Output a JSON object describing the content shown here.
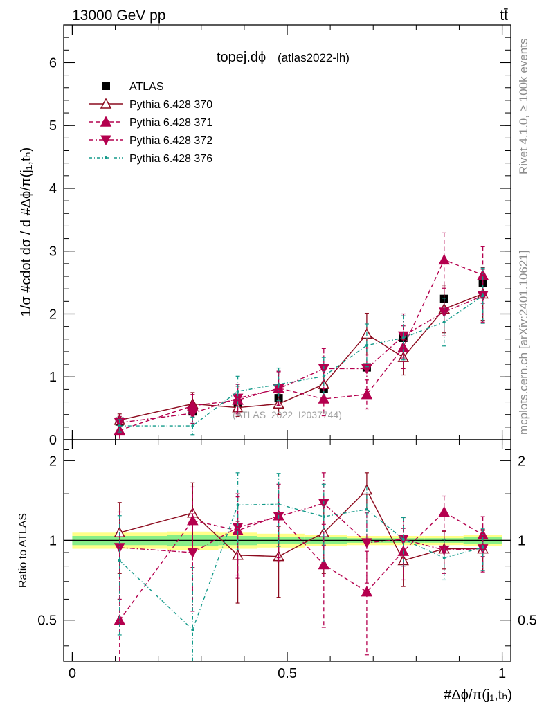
{
  "header": {
    "left": "13000 GeV pp",
    "right": "tt̄",
    "side_top": "Rivet 4.1.0, ≥ 100k events",
    "side_bottom": "mcplots.cern.ch [arXiv:2401.10621]"
  },
  "chart_data": {
    "type": "scatter",
    "title": "topej.dϕ",
    "subtitle": "(atlas2022-lh)",
    "watermark": "(ATLAS_2022_I2037744)",
    "ylabel": "1/σ #cdot dσ / d #Δϕ/π(j₁,tₕ)",
    "xlabel": "#Δϕ/π(j₁,tₕ)",
    "ratio_ylabel": "Ratio to ATLAS",
    "xlim": [
      -0.02,
      1.02
    ],
    "ylim": [
      0,
      6.6
    ],
    "ratio_ylim": [
      0.35,
      2.4
    ],
    "x_ticks": [
      0,
      0.5,
      1
    ],
    "x_tick_labels": [
      "0",
      "0.5",
      "1"
    ],
    "y_ticks": [
      0,
      1,
      2,
      3,
      4,
      5,
      6
    ],
    "y_tick_labels": [
      "0",
      "1",
      "2",
      "3",
      "4",
      "5",
      "6"
    ],
    "ratio_ticks": [
      0.5,
      1,
      2
    ],
    "ratio_tick_labels": [
      "0.5",
      "1",
      "2"
    ],
    "x": [
      0.11,
      0.28,
      0.385,
      0.48,
      0.585,
      0.685,
      0.77,
      0.865,
      0.955
    ],
    "band_edges": [
      0,
      0.22,
      0.34,
      0.43,
      0.54,
      0.64,
      0.73,
      0.82,
      0.91,
      1.0
    ],
    "band_yellow": [
      0.07,
      0.08,
      0.07,
      0.06,
      0.05,
      0.04,
      0.04,
      0.04,
      0.05
    ],
    "band_green": [
      0.04,
      0.05,
      0.04,
      0.03,
      0.03,
      0.02,
      0.02,
      0.02,
      0.03
    ],
    "series": [
      {
        "name": "ATLAS",
        "color": "#000000",
        "dash": "",
        "marker": "square",
        "values": [
          0.29,
          0.45,
          0.58,
          0.66,
          0.81,
          1.15,
          1.62,
          2.24,
          2.49
        ],
        "errors": [
          0.02,
          0.03,
          0.03,
          0.03,
          0.03,
          0.04,
          0.05,
          0.08,
          0.09
        ],
        "ratio": [
          1,
          1,
          1,
          1,
          1,
          1,
          1,
          1,
          1
        ],
        "ratio_err": [
          0,
          0,
          0,
          0,
          0,
          0,
          0,
          0,
          0
        ]
      },
      {
        "name": "Pythia 6.428 370",
        "color": "#8c0a1e",
        "dash": "",
        "marker": "triangle-open",
        "values": [
          0.31,
          0.57,
          0.51,
          0.57,
          0.88,
          1.68,
          1.31,
          2.08,
          2.32
        ],
        "errors": [
          0.1,
          0.18,
          0.14,
          0.17,
          0.26,
          0.33,
          0.28,
          0.38,
          0.42
        ],
        "ratio": [
          1.07,
          1.27,
          0.88,
          0.87,
          1.07,
          1.55,
          0.84,
          0.93,
          0.93
        ],
        "ratio_err": [
          0.32,
          0.38,
          0.3,
          0.26,
          0.32,
          0.25,
          0.17,
          0.15,
          0.16
        ]
      },
      {
        "name": "Pythia 6.428 371",
        "color": "#b4004e",
        "dash": "6,4",
        "marker": "triangle-up",
        "values": [
          0.15,
          0.54,
          0.63,
          0.82,
          0.65,
          0.72,
          1.47,
          2.86,
          2.62
        ],
        "errors": [
          0.15,
          0.18,
          0.22,
          0.27,
          0.27,
          0.23,
          0.34,
          0.43,
          0.45
        ],
        "ratio": [
          0.5,
          1.19,
          1.09,
          1.24,
          0.81,
          0.64,
          0.91,
          1.28,
          1.05
        ],
        "ratio_err": [
          0.45,
          0.4,
          0.37,
          0.38,
          0.34,
          0.27,
          0.2,
          0.19,
          0.18
        ]
      },
      {
        "name": "Pythia 6.428 372",
        "color": "#b4004e",
        "dash": "7,3,2,3",
        "marker": "triangle-down",
        "values": [
          0.27,
          0.42,
          0.66,
          0.81,
          1.13,
          1.13,
          1.65,
          2.03,
          2.29
        ],
        "errors": [
          0.1,
          0.16,
          0.22,
          0.27,
          0.32,
          0.33,
          0.35,
          0.38,
          0.42
        ],
        "ratio": [
          0.94,
          0.9,
          1.12,
          1.23,
          1.38,
          0.98,
          1.01,
          0.92,
          0.93
        ],
        "ratio_err": [
          0.34,
          0.36,
          0.38,
          0.4,
          0.42,
          0.29,
          0.21,
          0.17,
          0.17
        ]
      },
      {
        "name": "Pythia 6.428 376",
        "color": "#139a8a",
        "dash": "5,3,1,3",
        "marker": "star",
        "values": [
          0.22,
          0.22,
          0.77,
          0.88,
          1.01,
          1.5,
          1.62,
          1.87,
          2.29
        ],
        "errors": [
          0.1,
          0.14,
          0.24,
          0.26,
          0.3,
          0.34,
          0.35,
          0.38,
          0.44
        ],
        "ratio": [
          0.84,
          0.46,
          1.36,
          1.37,
          1.23,
          1.31,
          1.01,
          0.86,
          0.94
        ],
        "ratio_err": [
          0.4,
          0.34,
          0.44,
          0.42,
          0.4,
          0.28,
          0.21,
          0.15,
          0.17
        ]
      }
    ]
  }
}
